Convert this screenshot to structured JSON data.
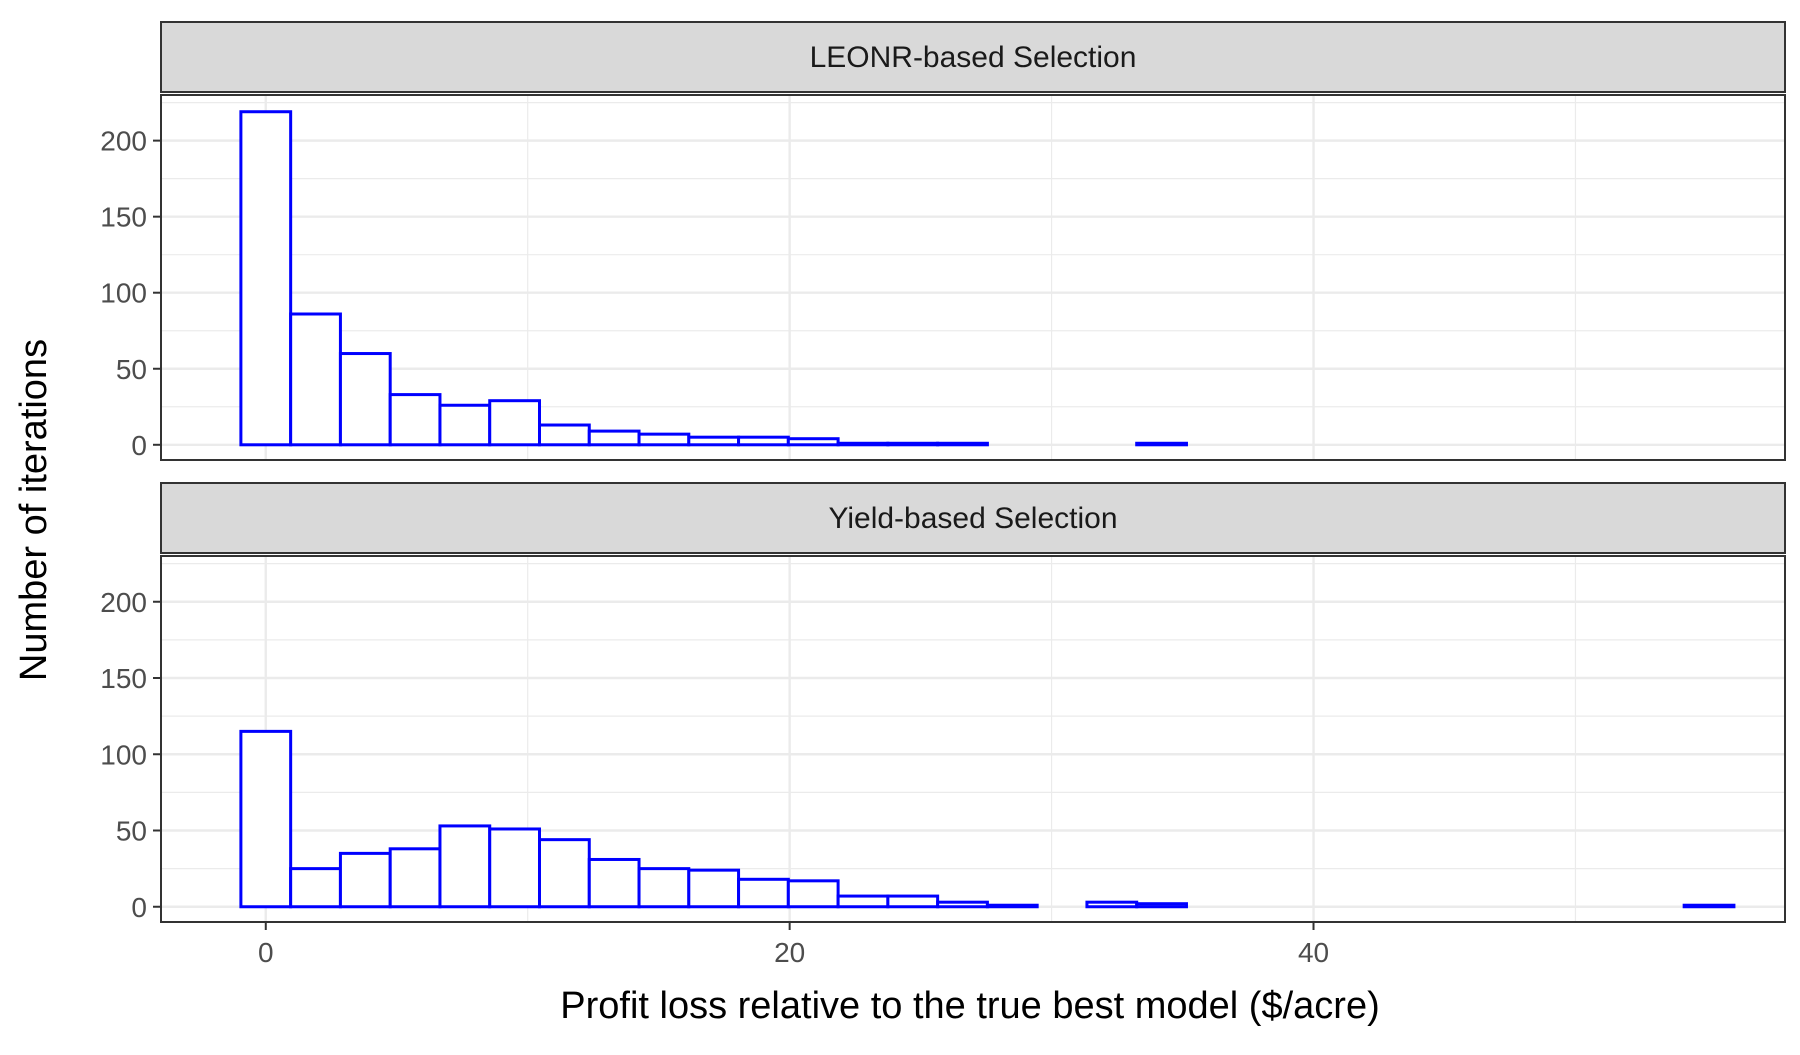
{
  "chart_data": {
    "type": "bar",
    "subtype": "histogram-facets",
    "xlabel": "Profit loss relative to the true best model ($/acre)",
    "ylabel": "Number of iterations",
    "xlim": [
      -4,
      58
    ],
    "ylim": [
      -10,
      230
    ],
    "x_ticks": [
      0,
      20,
      40
    ],
    "y_ticks": [
      0,
      50,
      100,
      150,
      200
    ],
    "grid": true,
    "bin_width": 1.9,
    "colors": {
      "bar_outline": "#0000ff",
      "bar_fill": "#ffffff",
      "strip_fill": "#d9d9d9",
      "grid": "#ebebeb",
      "panel_border": "#333333"
    },
    "facets": [
      {
        "label": "LEONR-based Selection",
        "bins": [
          {
            "xmin": -0.95,
            "xmax": 0.95,
            "count": 219
          },
          {
            "xmin": 0.95,
            "xmax": 2.85,
            "count": 86
          },
          {
            "xmin": 2.85,
            "xmax": 4.75,
            "count": 60
          },
          {
            "xmin": 4.75,
            "xmax": 6.65,
            "count": 33
          },
          {
            "xmin": 6.65,
            "xmax": 8.55,
            "count": 26
          },
          {
            "xmin": 8.55,
            "xmax": 10.45,
            "count": 29
          },
          {
            "xmin": 10.45,
            "xmax": 12.35,
            "count": 13
          },
          {
            "xmin": 12.35,
            "xmax": 14.25,
            "count": 9
          },
          {
            "xmin": 14.25,
            "xmax": 16.15,
            "count": 7
          },
          {
            "xmin": 16.15,
            "xmax": 18.05,
            "count": 5
          },
          {
            "xmin": 18.05,
            "xmax": 19.95,
            "count": 5
          },
          {
            "xmin": 19.95,
            "xmax": 21.85,
            "count": 4
          },
          {
            "xmin": 21.85,
            "xmax": 23.75,
            "count": 1
          },
          {
            "xmin": 23.75,
            "xmax": 25.65,
            "count": 1
          },
          {
            "xmin": 25.65,
            "xmax": 27.55,
            "count": 1
          },
          {
            "xmin": 33.25,
            "xmax": 35.15,
            "count": 1
          }
        ]
      },
      {
        "label": "Yield-based Selection",
        "bins": [
          {
            "xmin": -0.95,
            "xmax": 0.95,
            "count": 115
          },
          {
            "xmin": 0.95,
            "xmax": 2.85,
            "count": 25
          },
          {
            "xmin": 2.85,
            "xmax": 4.75,
            "count": 35
          },
          {
            "xmin": 4.75,
            "xmax": 6.65,
            "count": 38
          },
          {
            "xmin": 6.65,
            "xmax": 8.55,
            "count": 53
          },
          {
            "xmin": 8.55,
            "xmax": 10.45,
            "count": 51
          },
          {
            "xmin": 10.45,
            "xmax": 12.35,
            "count": 44
          },
          {
            "xmin": 12.35,
            "xmax": 14.25,
            "count": 31
          },
          {
            "xmin": 14.25,
            "xmax": 16.15,
            "count": 25
          },
          {
            "xmin": 16.15,
            "xmax": 18.05,
            "count": 24
          },
          {
            "xmin": 18.05,
            "xmax": 19.95,
            "count": 18
          },
          {
            "xmin": 19.95,
            "xmax": 21.85,
            "count": 17
          },
          {
            "xmin": 21.85,
            "xmax": 23.75,
            "count": 7
          },
          {
            "xmin": 23.75,
            "xmax": 25.65,
            "count": 7
          },
          {
            "xmin": 25.65,
            "xmax": 27.55,
            "count": 3
          },
          {
            "xmin": 27.55,
            "xmax": 29.45,
            "count": 1
          },
          {
            "xmin": 31.35,
            "xmax": 33.25,
            "count": 3
          },
          {
            "xmin": 33.25,
            "xmax": 35.15,
            "count": 2
          },
          {
            "xmin": 54.15,
            "xmax": 56.05,
            "count": 1
          }
        ]
      }
    ]
  }
}
